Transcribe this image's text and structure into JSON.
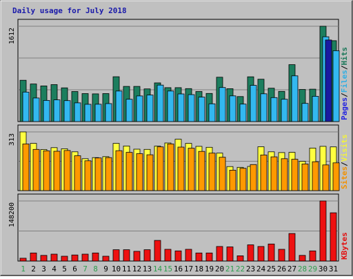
{
  "chart_data": [
    {
      "type": "bar",
      "title": "Daily usage for July 2018",
      "ytick_label": "1612",
      "ylim": [
        0,
        1612
      ],
      "categories": [
        "1",
        "2",
        "3",
        "4",
        "5",
        "6",
        "7",
        "8",
        "9",
        "10",
        "11",
        "12",
        "13",
        "14",
        "15",
        "16",
        "17",
        "18",
        "19",
        "20",
        "21",
        "22",
        "23",
        "24",
        "25",
        "26",
        "27",
        "28",
        "29",
        "30",
        "31"
      ],
      "weekend_days": [
        "1",
        "7",
        "8",
        "14",
        "15",
        "21",
        "22",
        "28",
        "29"
      ],
      "series": [
        {
          "name": "Hits",
          "color": "#1c7e5e",
          "values": [
            698,
            636,
            603,
            625,
            570,
            508,
            473,
            468,
            473,
            758,
            594,
            594,
            553,
            654,
            574,
            574,
            557,
            508,
            475,
            750,
            556,
            423,
            757,
            716,
            564,
            510,
            962,
            543,
            548,
            1612,
            1368
          ]
        },
        {
          "name": "Files",
          "color": "#33b8f0",
          "values": [
            499,
            398,
            358,
            367,
            354,
            316,
            292,
            293,
            304,
            516,
            377,
            433,
            448,
            617,
            516,
            467,
            455,
            413,
            300,
            576,
            434,
            295,
            612,
            470,
            405,
            377,
            773,
            307,
            427,
            1434,
            1198
          ]
        },
        {
          "name": "Pages",
          "color": "#1a1aa0",
          "values": [
            0,
            0,
            0,
            0,
            0,
            0,
            0,
            0,
            0,
            0,
            0,
            0,
            0,
            0,
            0,
            0,
            0,
            0,
            0,
            0,
            0,
            0,
            0,
            0,
            0,
            0,
            0,
            0,
            0,
            1380,
            0
          ]
        }
      ],
      "side_labels": [
        "Pages",
        "Files",
        "Hits"
      ],
      "separators": [
        "/",
        "/"
      ]
    },
    {
      "type": "bar",
      "ytick_label": "313",
      "ylim": [
        0,
        313
      ],
      "categories": [
        "1",
        "2",
        "3",
        "4",
        "5",
        "6",
        "7",
        "8",
        "9",
        "10",
        "11",
        "12",
        "13",
        "14",
        "15",
        "16",
        "17",
        "18",
        "19",
        "20",
        "21",
        "22",
        "23",
        "24",
        "25",
        "26",
        "27",
        "28",
        "29",
        "30",
        "31"
      ],
      "series": [
        {
          "name": "Visits",
          "color": "#ffff40",
          "values": [
            313,
            252,
            219,
            229,
            223,
            207,
            170,
            176,
            181,
            252,
            238,
            221,
            220,
            237,
            254,
            274,
            252,
            236,
            231,
            200,
            128,
            124,
            129,
            234,
            207,
            203,
            204,
            156,
            227,
            236,
            233
          ]
        },
        {
          "name": "Sites",
          "color": "#ff9900",
          "values": [
            249,
            220,
            212,
            210,
            214,
            186,
            159,
            174,
            176,
            213,
            204,
            197,
            191,
            233,
            249,
            232,
            226,
            209,
            200,
            178,
            109,
            119,
            139,
            190,
            180,
            170,
            167,
            142,
            154,
            137,
            148
          ]
        }
      ],
      "side_labels": [
        "Sites",
        "Visits"
      ],
      "separators": [
        "/"
      ]
    },
    {
      "type": "bar",
      "ytick_label": "148200",
      "ylim": [
        0,
        148200
      ],
      "categories": [
        "1",
        "2",
        "3",
        "4",
        "5",
        "6",
        "7",
        "8",
        "9",
        "10",
        "11",
        "12",
        "13",
        "14",
        "15",
        "16",
        "17",
        "18",
        "19",
        "20",
        "21",
        "22",
        "23",
        "24",
        "25",
        "26",
        "27",
        "28",
        "29",
        "30",
        "31"
      ],
      "series": [
        {
          "name": "KBytes",
          "color": "#ee1111",
          "values": [
            7000,
            20000,
            14000,
            17000,
            12000,
            15000,
            17000,
            20000,
            12000,
            28000,
            28000,
            24000,
            28000,
            51000,
            29000,
            25000,
            29000,
            20000,
            20000,
            36000,
            35000,
            13000,
            40000,
            36000,
            42000,
            29000,
            68000,
            14000,
            25000,
            148200,
            119000
          ]
        }
      ],
      "side_labels": [
        "KBytes"
      ]
    }
  ]
}
